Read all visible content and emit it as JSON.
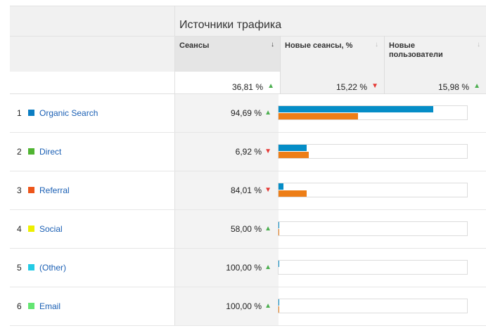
{
  "group_title": "Источники трафика",
  "columns": [
    {
      "label": "Сеансы",
      "sort_icon": "↓"
    },
    {
      "label": "Новые сеансы, %",
      "sort_icon": "↓"
    },
    {
      "label": "Новые пользователи",
      "sort_icon": "↓"
    }
  ],
  "totals": [
    {
      "value": "36,81 %",
      "trend": "up"
    },
    {
      "value": "15,22 %",
      "trend": "down"
    },
    {
      "value": "15,98 %",
      "trend": "up"
    }
  ],
  "colors": {
    "bar_sessions": "#058dc7",
    "bar_new_sessions": "#ed7e17",
    "link": "#1a5fb4"
  },
  "rows": [
    {
      "num": "1",
      "name": "Organic Search",
      "color": "#0b7dc2",
      "value": "94,69 %",
      "trend": "up",
      "bar_sessions_pct": 82,
      "bar_new_pct": 42
    },
    {
      "num": "2",
      "name": "Direct",
      "color": "#50b432",
      "value": "6,92 %",
      "trend": "down",
      "bar_sessions_pct": 15,
      "bar_new_pct": 16
    },
    {
      "num": "3",
      "name": "Referral",
      "color": "#ed561b",
      "value": "84,01 %",
      "trend": "down",
      "bar_sessions_pct": 2.5,
      "bar_new_pct": 15
    },
    {
      "num": "4",
      "name": "Social",
      "color": "#edef00",
      "value": "58,00 %",
      "trend": "up",
      "bar_sessions_pct": 0.4,
      "bar_new_pct": 0.4
    },
    {
      "num": "5",
      "name": "(Other)",
      "color": "#24cbe5",
      "value": "100,00 %",
      "trend": "up",
      "bar_sessions_pct": 0.4,
      "bar_new_pct": 0
    },
    {
      "num": "6",
      "name": "Email",
      "color": "#64e572",
      "value": "100,00 %",
      "trend": "up",
      "bar_sessions_pct": 0.4,
      "bar_new_pct": 0.4
    }
  ]
}
